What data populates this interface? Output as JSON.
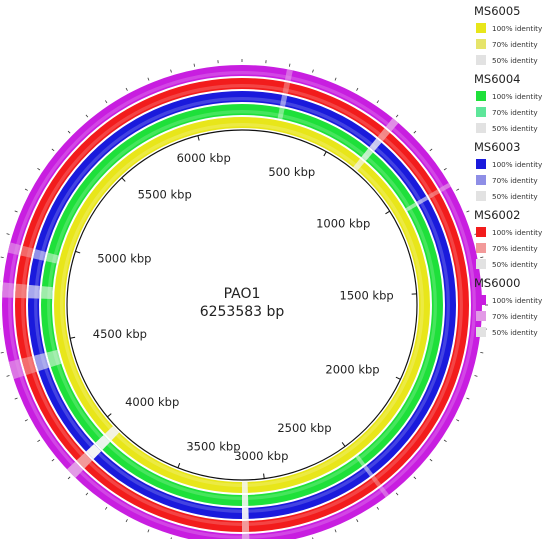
{
  "genome": {
    "name": "PAO1",
    "size_label": "6253583 bp",
    "size_bp": 6253583
  },
  "scale_labels": [
    {
      "bp": 500000,
      "text": "500 kbp"
    },
    {
      "bp": 1000000,
      "text": "1000 kbp"
    },
    {
      "bp": 1500000,
      "text": "1500 kbp"
    },
    {
      "bp": 2000000,
      "text": "2000 kbp"
    },
    {
      "bp": 2500000,
      "text": "2500 kbp"
    },
    {
      "bp": 3000000,
      "text": "3000 kbp"
    },
    {
      "bp": 3500000,
      "text": "3500 kbp"
    },
    {
      "bp": 4000000,
      "text": "4000 kbp"
    },
    {
      "bp": 4500000,
      "text": "4500 kbp"
    },
    {
      "bp": 5000000,
      "text": "5000 kbp"
    },
    {
      "bp": 5500000,
      "text": "5500 kbp"
    },
    {
      "bp": 6000000,
      "text": "6000 kbp"
    }
  ],
  "rings": [
    {
      "name": "MS6005",
      "color": "#e8e61a",
      "color70": "#e6e46a",
      "color50": "#e2e2e2"
    },
    {
      "name": "MS6004",
      "color": "#1ee03a",
      "color70": "#5ee69a",
      "color50": "#e2e2e2"
    },
    {
      "name": "MS6003",
      "color": "#1a1adc",
      "color70": "#8e8ee6",
      "color50": "#e2e2e2"
    },
    {
      "name": "MS6002",
      "color": "#f21c1c",
      "color70": "#f29a9a",
      "color50": "#e2e2e2"
    },
    {
      "name": "MS6000",
      "color": "#c81ee0",
      "color70": "#e29ae6",
      "color50": "#e2e2e2"
    }
  ],
  "legend": {
    "label_100": "100% identity",
    "label_70": "70% identity",
    "label_50": "50% identity"
  }
}
